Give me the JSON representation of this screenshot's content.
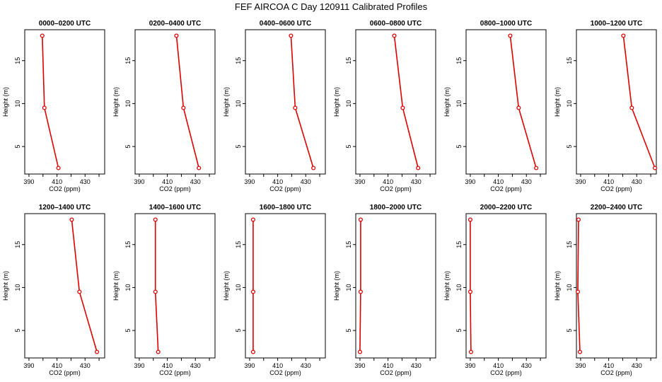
{
  "title": "FEF AIRCOA C  Day 120911  Calibrated Profiles",
  "chart_data": [
    {
      "type": "line",
      "title": "0000–0200 UTC",
      "xlabel": "CO2 (ppm)",
      "ylabel": "Height (m)",
      "xlim": [
        387,
        444
      ],
      "ylim": [
        1.8,
        18.6
      ],
      "xticks": [
        390,
        410,
        430
      ],
      "yticks": [
        5,
        10,
        15
      ],
      "grid": false,
      "series": [
        {
          "x": [
            399.5,
            401.0,
            411.0
          ],
          "y": [
            17.9,
            9.5,
            2.5
          ]
        }
      ]
    },
    {
      "type": "line",
      "title": "0200–0400 UTC",
      "xlabel": "CO2 (ppm)",
      "ylabel": "Height (m)",
      "xlim": [
        387,
        444
      ],
      "ylim": [
        1.8,
        18.6
      ],
      "xticks": [
        390,
        410,
        430
      ],
      "yticks": [
        5,
        10,
        15
      ],
      "grid": false,
      "series": [
        {
          "x": [
            416.5,
            421.5,
            432.5
          ],
          "y": [
            17.9,
            9.5,
            2.5
          ]
        }
      ]
    },
    {
      "type": "line",
      "title": "0400–0600 UTC",
      "xlabel": "CO2 (ppm)",
      "ylabel": "Height (m)",
      "xlim": [
        387,
        444
      ],
      "ylim": [
        1.8,
        18.6
      ],
      "xticks": [
        390,
        410,
        430
      ],
      "yticks": [
        5,
        10,
        15
      ],
      "grid": false,
      "series": [
        {
          "x": [
            419.5,
            422.5,
            435.5
          ],
          "y": [
            17.9,
            9.5,
            2.5
          ]
        }
      ]
    },
    {
      "type": "line",
      "title": "0600–0800 UTC",
      "xlabel": "CO2 (ppm)",
      "ylabel": "Height (m)",
      "xlim": [
        387,
        444
      ],
      "ylim": [
        1.8,
        18.6
      ],
      "xticks": [
        390,
        410,
        430
      ],
      "yticks": [
        5,
        10,
        15
      ],
      "grid": false,
      "series": [
        {
          "x": [
            414.5,
            420.5,
            431.5
          ],
          "y": [
            17.9,
            9.5,
            2.5
          ]
        }
      ]
    },
    {
      "type": "line",
      "title": "0800–1000 UTC",
      "xlabel": "CO2 (ppm)",
      "ylabel": "Height (m)",
      "xlim": [
        387,
        444
      ],
      "ylim": [
        1.8,
        18.6
      ],
      "xticks": [
        390,
        410,
        430
      ],
      "yticks": [
        5,
        10,
        15
      ],
      "grid": false,
      "series": [
        {
          "x": [
            418.5,
            424.5,
            437.0
          ],
          "y": [
            17.9,
            9.5,
            2.5
          ]
        }
      ]
    },
    {
      "type": "line",
      "title": "1000–1200 UTC",
      "xlabel": "CO2 (ppm)",
      "ylabel": "Height (m)",
      "xlim": [
        387,
        444
      ],
      "ylim": [
        1.8,
        18.6
      ],
      "xticks": [
        390,
        410,
        430
      ],
      "yticks": [
        5,
        10,
        15
      ],
      "grid": false,
      "series": [
        {
          "x": [
            420.5,
            426.5,
            443.0
          ],
          "y": [
            17.9,
            9.5,
            2.5
          ]
        }
      ]
    },
    {
      "type": "line",
      "title": "1200–1400 UTC",
      "xlabel": "CO2 (ppm)",
      "ylabel": "Height (m)",
      "xlim": [
        387,
        444
      ],
      "ylim": [
        1.8,
        18.6
      ],
      "xticks": [
        390,
        410,
        430
      ],
      "yticks": [
        5,
        10,
        15
      ],
      "grid": false,
      "series": [
        {
          "x": [
            420.5,
            426.0,
            438.5
          ],
          "y": [
            17.9,
            9.5,
            2.5
          ]
        }
      ]
    },
    {
      "type": "line",
      "title": "1400–1600 UTC",
      "xlabel": "CO2 (ppm)",
      "ylabel": "Height (m)",
      "xlim": [
        387,
        444
      ],
      "ylim": [
        1.8,
        18.6
      ],
      "xticks": [
        390,
        410,
        430
      ],
      "yticks": [
        5,
        10,
        15
      ],
      "grid": false,
      "series": [
        {
          "x": [
            401.5,
            401.5,
            403.5
          ],
          "y": [
            17.9,
            9.5,
            2.5
          ]
        }
      ]
    },
    {
      "type": "line",
      "title": "1600–1800 UTC",
      "xlabel": "CO2 (ppm)",
      "ylabel": "Height (m)",
      "xlim": [
        387,
        444
      ],
      "ylim": [
        1.8,
        18.6
      ],
      "xticks": [
        390,
        410,
        430
      ],
      "yticks": [
        5,
        10,
        15
      ],
      "grid": false,
      "series": [
        {
          "x": [
            392.5,
            392.5,
            392.5
          ],
          "y": [
            17.9,
            9.5,
            2.5
          ]
        }
      ]
    },
    {
      "type": "line",
      "title": "1800–2000 UTC",
      "xlabel": "CO2 (ppm)",
      "ylabel": "Height (m)",
      "xlim": [
        387,
        444
      ],
      "ylim": [
        1.8,
        18.6
      ],
      "xticks": [
        390,
        410,
        430
      ],
      "yticks": [
        5,
        10,
        15
      ],
      "grid": false,
      "series": [
        {
          "x": [
            390.5,
            390.5,
            390.0
          ],
          "y": [
            17.9,
            9.5,
            2.5
          ]
        }
      ]
    },
    {
      "type": "line",
      "title": "2000–2200 UTC",
      "xlabel": "CO2 (ppm)",
      "ylabel": "Height (m)",
      "xlim": [
        387,
        444
      ],
      "ylim": [
        1.8,
        18.6
      ],
      "xticks": [
        390,
        410,
        430
      ],
      "yticks": [
        5,
        10,
        15
      ],
      "grid": false,
      "series": [
        {
          "x": [
            390.0,
            390.0,
            390.5
          ],
          "y": [
            17.9,
            9.5,
            2.5
          ]
        }
      ]
    },
    {
      "type": "line",
      "title": "2200–2400 UTC",
      "xlabel": "CO2 (ppm)",
      "ylabel": "Height (m)",
      "xlim": [
        387,
        444
      ],
      "ylim": [
        1.8,
        18.6
      ],
      "xticks": [
        390,
        410,
        430
      ],
      "yticks": [
        5,
        10,
        15
      ],
      "grid": false,
      "series": [
        {
          "x": [
            388.5,
            388.0,
            389.5
          ],
          "y": [
            17.9,
            9.5,
            2.5
          ]
        }
      ]
    }
  ]
}
